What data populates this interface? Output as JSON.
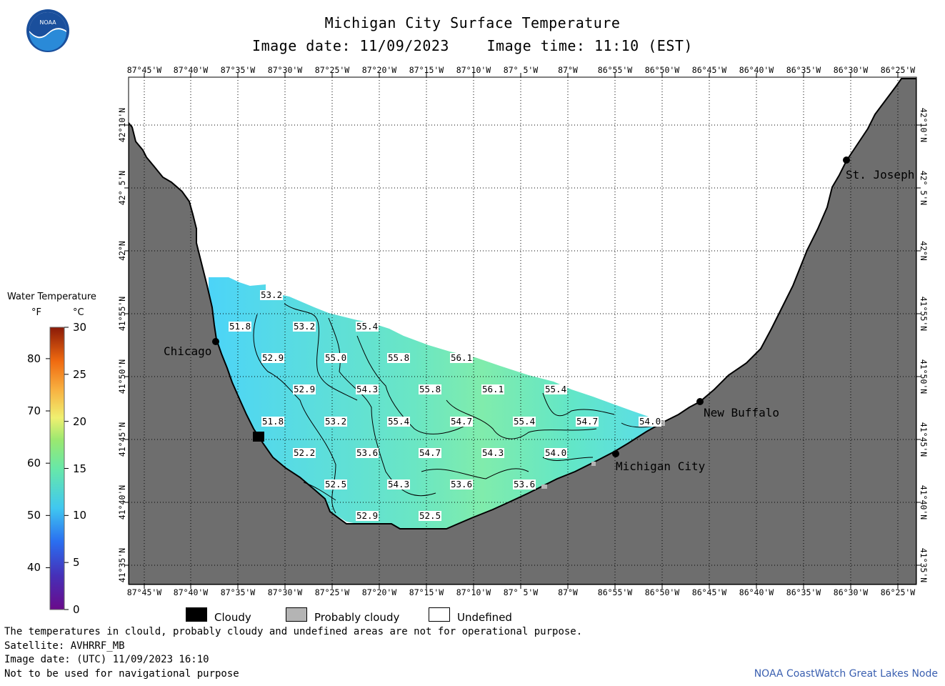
{
  "header": {
    "title": "Michigan City Surface Temperature",
    "image_date": "Image date: 11/09/2023",
    "image_time": "Image time: 11:10 (EST)"
  },
  "logo": {
    "text": "NOAA",
    "icon": "noaa-logo-icon"
  },
  "axes": {
    "longitude_ticks": [
      "87°45'W",
      "87°40'W",
      "87°35'W",
      "87°30'W",
      "87°25'W",
      "87°20'W",
      "87°15'W",
      "87°10'W",
      "87° 5'W",
      "87°W",
      "86°55'W",
      "86°50'W",
      "86°45'W",
      "86°40'W",
      "86°35'W",
      "86°30'W",
      "86°25'W"
    ],
    "latitude_ticks": [
      "42°10'N",
      "42° 5'N",
      "42°N",
      "41°55'N",
      "41°50'N",
      "41°45'N",
      "41°40'N",
      "41°35'N"
    ]
  },
  "cities": [
    {
      "name": "Chicago"
    },
    {
      "name": "St. Joseph"
    },
    {
      "name": "New Buffalo"
    },
    {
      "name": "Michigan City"
    }
  ],
  "temperature_labels": [
    "53.2",
    "51.8",
    "53.2",
    "55.4",
    "52.9",
    "55.0",
    "55.8",
    "56.1",
    "52.9",
    "54.3",
    "55.8",
    "56.1",
    "55.4",
    "51.8",
    "53.2",
    "55.4",
    "54.7",
    "55.4",
    "54.7",
    "54.0",
    "52.2",
    "53.6",
    "54.7",
    "54.3",
    "54.0",
    "52.5",
    "54.3",
    "53.6",
    "53.6",
    "52.9",
    "52.5"
  ],
  "legend": {
    "title": "Water Temperature",
    "unit_f": "°F",
    "unit_c": "°C",
    "f_ticks": [
      "80",
      "70",
      "60",
      "50",
      "40"
    ],
    "c_ticks": [
      "30",
      "25",
      "20",
      "15",
      "10",
      "5",
      "0"
    ],
    "colors": {
      "land": "#6e6e6e",
      "water_cool": "#54d8f8",
      "water_warm": "#7aeaa0",
      "cloudy": "#000000",
      "probably_cloudy": "#b4b4b4",
      "undefined": "#ffffff"
    }
  },
  "key": {
    "cloudy": "Cloudy",
    "probably_cloudy": "Probably cloudy",
    "undefined": "Undefined"
  },
  "footer": {
    "disclaimer": "The temperatures in clould, probably cloudy and undefined areas are not for operational purpose.",
    "satellite": "Satellite: AVHRRF_MB",
    "utc_date": "Image date: (UTC) 11/09/2023  16:10",
    "nav_note": "Not to be used for navigational purpose",
    "credit": "NOAA CoastWatch Great Lakes Node"
  }
}
